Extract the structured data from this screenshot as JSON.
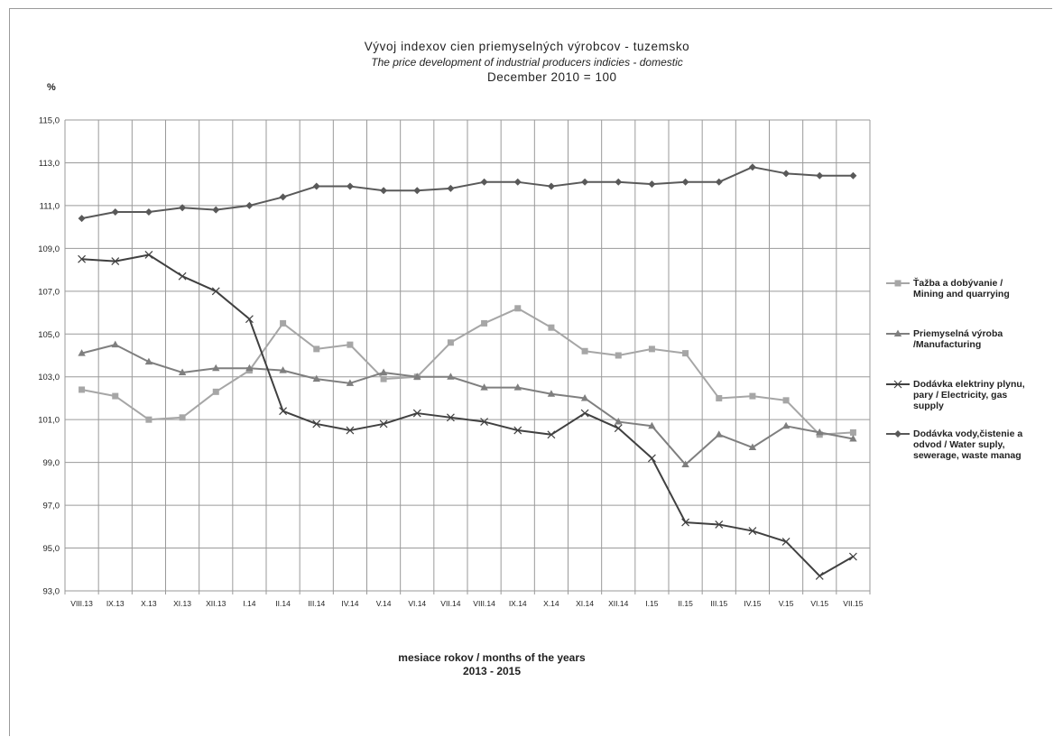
{
  "titles": {
    "line1": "Vývoj indexov cien priemyselných výrobcov - tuzemsko",
    "line2": "The price development of industrial producers indicies - domestic",
    "line3": "December 2010 = 100"
  },
  "unit_label": "%",
  "x_title_line1": "mesiace rokov / months of the years",
  "x_title_line2": "2013 - 2015",
  "chart_data": {
    "type": "line",
    "categories": [
      "VIII.13",
      "IX.13",
      "X.13",
      "XI.13",
      "XII.13",
      "I.14",
      "II.14",
      "III.14",
      "IV.14",
      "V.14",
      "VI.14",
      "VII.14",
      "VIII.14",
      "IX.14",
      "X.14",
      "XI.14",
      "XII.14",
      "I.15",
      "II.15",
      "III.15",
      "IV.15",
      "V.15",
      "VI.15",
      "VII.15"
    ],
    "ylim": [
      93.0,
      115.0
    ],
    "yticks": [
      "93,0",
      "95,0",
      "97,0",
      "99,0",
      "101,0",
      "103,0",
      "105,0",
      "107,0",
      "109,0",
      "111,0",
      "113,0",
      "115,0"
    ],
    "grid": true,
    "legend_position": "right",
    "series": [
      {
        "name": "Ťažba a dobývanie / Mining and quarrying",
        "name_lines": [
          "Ťažba a dobývanie /",
          "Mining and quarrying"
        ],
        "marker": "square",
        "color": "#a6a6a6",
        "values": [
          102.4,
          102.1,
          101.0,
          101.1,
          102.3,
          103.3,
          105.5,
          104.3,
          104.5,
          102.9,
          103.0,
          104.6,
          105.5,
          106.2,
          105.3,
          104.2,
          104.0,
          104.3,
          104.1,
          102.0,
          102.1,
          101.9,
          100.3,
          100.4
        ]
      },
      {
        "name": "Priemyselná výroba /Manufacturing",
        "name_lines": [
          "Priemyselná výroba",
          "/Manufacturing"
        ],
        "marker": "triangle",
        "color": "#7f7f7f",
        "values": [
          104.1,
          104.5,
          103.7,
          103.2,
          103.4,
          103.4,
          103.3,
          102.9,
          102.7,
          103.2,
          103.0,
          103.0,
          102.5,
          102.5,
          102.2,
          102.0,
          100.9,
          100.7,
          98.9,
          100.3,
          99.7,
          100.7,
          100.4,
          100.1
        ]
      },
      {
        "name": "Dodávka elektriny plynu, pary / Electricity, gas supply",
        "name_lines": [
          "Dodávka elektriny plynu,",
          "pary / Electricity, gas",
          "supply"
        ],
        "marker": "x",
        "color": "#404040",
        "values": [
          108.5,
          108.4,
          108.7,
          107.7,
          107.0,
          105.7,
          101.4,
          100.8,
          100.5,
          100.8,
          101.3,
          101.1,
          100.9,
          100.5,
          100.3,
          101.3,
          100.6,
          99.2,
          96.2,
          96.1,
          95.8,
          95.3,
          93.7,
          94.6
        ]
      },
      {
        "name": "Dodávka vody,čistenie a odvod / Water suply, sewerage, waste manag",
        "name_lines": [
          "Dodávka vody,čistenie a",
          "odvod / Water suply,",
          "sewerage, waste manag"
        ],
        "marker": "diamond",
        "color": "#595959",
        "values": [
          110.4,
          110.7,
          110.7,
          110.9,
          110.8,
          111.0,
          111.4,
          111.9,
          111.9,
          111.7,
          111.7,
          111.8,
          112.1,
          112.1,
          111.9,
          112.1,
          112.1,
          112.0,
          112.1,
          112.1,
          112.8,
          112.5,
          112.4,
          112.4
        ]
      }
    ]
  }
}
